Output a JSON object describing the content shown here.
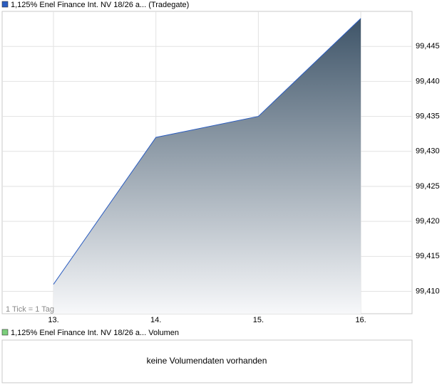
{
  "chart_data": {
    "type": "area",
    "series": [
      {
        "name": "1,125% Enel Finance Int. NV 18/26 a...",
        "color": "#2a5cc0",
        "values": [
          99.411,
          99.432,
          99.435,
          99.449
        ]
      }
    ],
    "exchange": "(Tradegate)",
    "annotation": "1 Tick = 1 Tag",
    "categories": [
      "13.",
      "14.",
      "15.",
      "16."
    ],
    "ylim": [
      99.4068,
      99.45
    ],
    "yticks": [
      {
        "value": 99.41,
        "label": "99,410"
      },
      {
        "value": 99.415,
        "label": "99,415"
      },
      {
        "value": 99.42,
        "label": "99,420"
      },
      {
        "value": 99.425,
        "label": "99,425"
      },
      {
        "value": 99.43,
        "label": "99,430"
      },
      {
        "value": 99.435,
        "label": "99,435"
      },
      {
        "value": 99.44,
        "label": "99,440"
      },
      {
        "value": 99.445,
        "label": "99,445"
      }
    ],
    "grid": true,
    "fill_top": "#3e5468",
    "fill_bottom": "#f7f8fa"
  },
  "volume_panel": {
    "legend": "1,125% Enel Finance Int. NV 18/26 a... Volumen",
    "legend_color": "#7ccf7c",
    "message": "keine Volumendaten vorhanden"
  }
}
